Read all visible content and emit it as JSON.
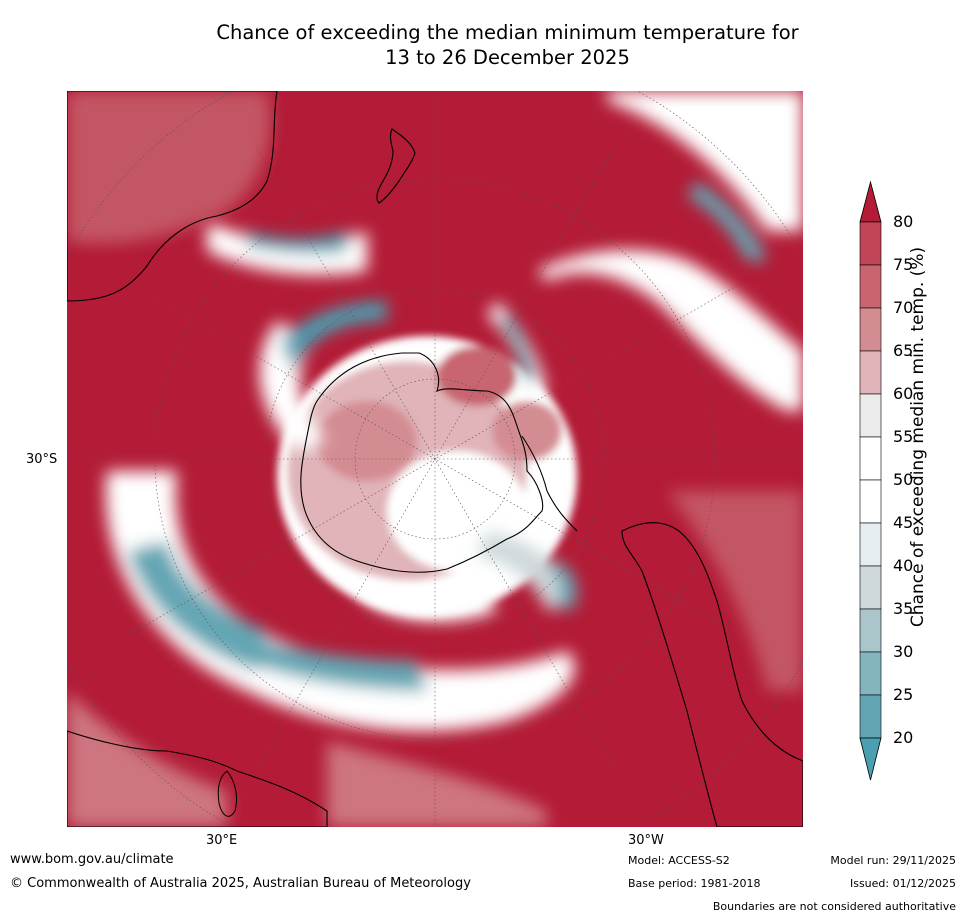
{
  "title": {
    "line1": "Chance of exceeding the median minimum temperature for",
    "line2": "13 to 26 December 2025"
  },
  "map": {
    "lat_label_left": "30°S",
    "lon_label_1": "30°E",
    "lon_label_2": "30°W",
    "projection": "south polar stereographic",
    "fill_color_high": "#b31b36",
    "fill_color_low": "#4a9fb1"
  },
  "colorbar": {
    "title": "Chance of exceeding median min. temp. (%)",
    "ticks": [
      "80",
      "75",
      "70",
      "65",
      "60",
      "55",
      "50",
      "45",
      "40",
      "35",
      "30",
      "25",
      "20"
    ],
    "colors": [
      "#b31b36",
      "#c04556",
      "#c8656f",
      "#d48c93",
      "#e0b4b8",
      "#ebebeb",
      "#ffffff",
      "#ffffff",
      "#e6edf0",
      "#cfd8db",
      "#abc6cb",
      "#84b5bf",
      "#63a6b3",
      "#4a9fb1"
    ]
  },
  "footer": {
    "website": "www.bom.gov.au/climate",
    "copyright": "© Commonwealth of Australia 2025, Australian Bureau of Meteorology",
    "model": "Model: ACCESS-S2",
    "base_period": "Base period: 1981-2018",
    "model_run": "Model run: 29/11/2025",
    "issued": "Issued: 01/12/2025",
    "disclaimer": "Boundaries are not considered authoritative"
  }
}
